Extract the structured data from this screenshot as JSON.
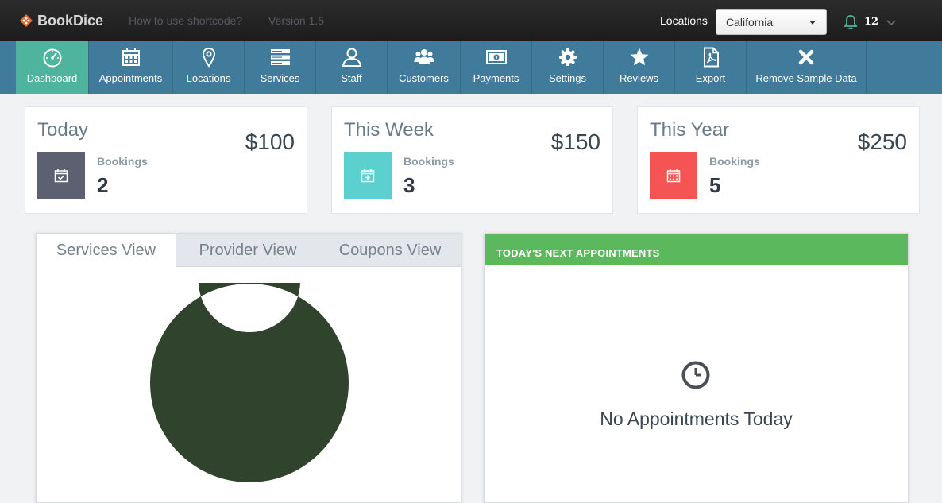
{
  "topbar": {
    "brand": "BookDice",
    "links": [
      "How to use shortcode?",
      "Version 1.5"
    ],
    "locations_label": "Locations",
    "location_selected": "California",
    "notifications_count": "12"
  },
  "nav": {
    "items": [
      {
        "label": "Dashboard",
        "icon": "gauge-icon",
        "active": true
      },
      {
        "label": "Appointments",
        "icon": "calendar-icon"
      },
      {
        "label": "Locations",
        "icon": "map-marker-icon"
      },
      {
        "label": "Services",
        "icon": "server-icon"
      },
      {
        "label": "Staff",
        "icon": "user-icon"
      },
      {
        "label": "Customers",
        "icon": "users-icon"
      },
      {
        "label": "Payments",
        "icon": "money-icon"
      },
      {
        "label": "Settings",
        "icon": "gear-icon"
      },
      {
        "label": "Reviews",
        "icon": "star-icon"
      },
      {
        "label": "Export",
        "icon": "pdf-file-icon"
      },
      {
        "label": "Remove Sample Data",
        "icon": "close-icon"
      }
    ]
  },
  "stats": [
    {
      "title": "Today",
      "amount": "$100",
      "bookings_label": "Bookings",
      "bookings": "2",
      "color": "#5b6170"
    },
    {
      "title": "This Week",
      "amount": "$150",
      "bookings_label": "Bookings",
      "bookings": "3",
      "color": "#5bd0cf"
    },
    {
      "title": "This Year",
      "amount": "$250",
      "bookings_label": "Bookings",
      "bookings": "5",
      "color": "#f55455"
    }
  ],
  "views": {
    "tabs": [
      "Services View",
      "Provider View",
      "Coupons View"
    ],
    "active_tab": "Services View"
  },
  "chart_data": {
    "type": "pie",
    "donut": true,
    "values": [
      1
    ],
    "colors": [
      "#30442d"
    ]
  },
  "appointments": {
    "header": "TODAY'S NEXT APPOINTMENTS",
    "empty_text": "No Appointments Today",
    "header_color": "#5cb85c"
  },
  "colors": {
    "nav_bg": "#407b9b",
    "nav_active": "#4fb49d",
    "topbar_bg": "#222222"
  }
}
